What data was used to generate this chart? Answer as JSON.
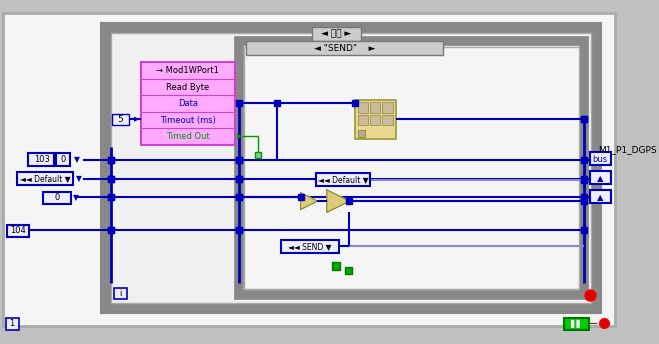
{
  "wire_color": "#0000bb",
  "wire_light": "#8888cc",
  "green_wire": "#009900",
  "pink_fill": "#ffaaff",
  "pink_edge": "#cc44cc",
  "yellow_fill": "#e8d890",
  "yellow_edge": "#999933",
  "label_ModIWPort1": "→ Mod1WPort1",
  "label_ReadByte": "Read Byte",
  "label_Data": "Data",
  "label_Timeout": "Timeout (ms)",
  "label_TimedOut": "Timed Out",
  "label_5": "5",
  "label_103": "103",
  "label_0": "0",
  "label_Default": "◄◄ Default ▼",
  "label_Default2": "◄◄ Default ▼",
  "label_104": "104",
  "label_SEND_case": "◄ \"SEND\"    ►",
  "label_geojit": "◄ 거짓 ►",
  "label_SEND_bot": "◄◄ SEND ▼",
  "label_M1P1DGPS": "M1_P1_DGPS",
  "label_bus": "bus",
  "label_1": "1",
  "label_i": "i"
}
